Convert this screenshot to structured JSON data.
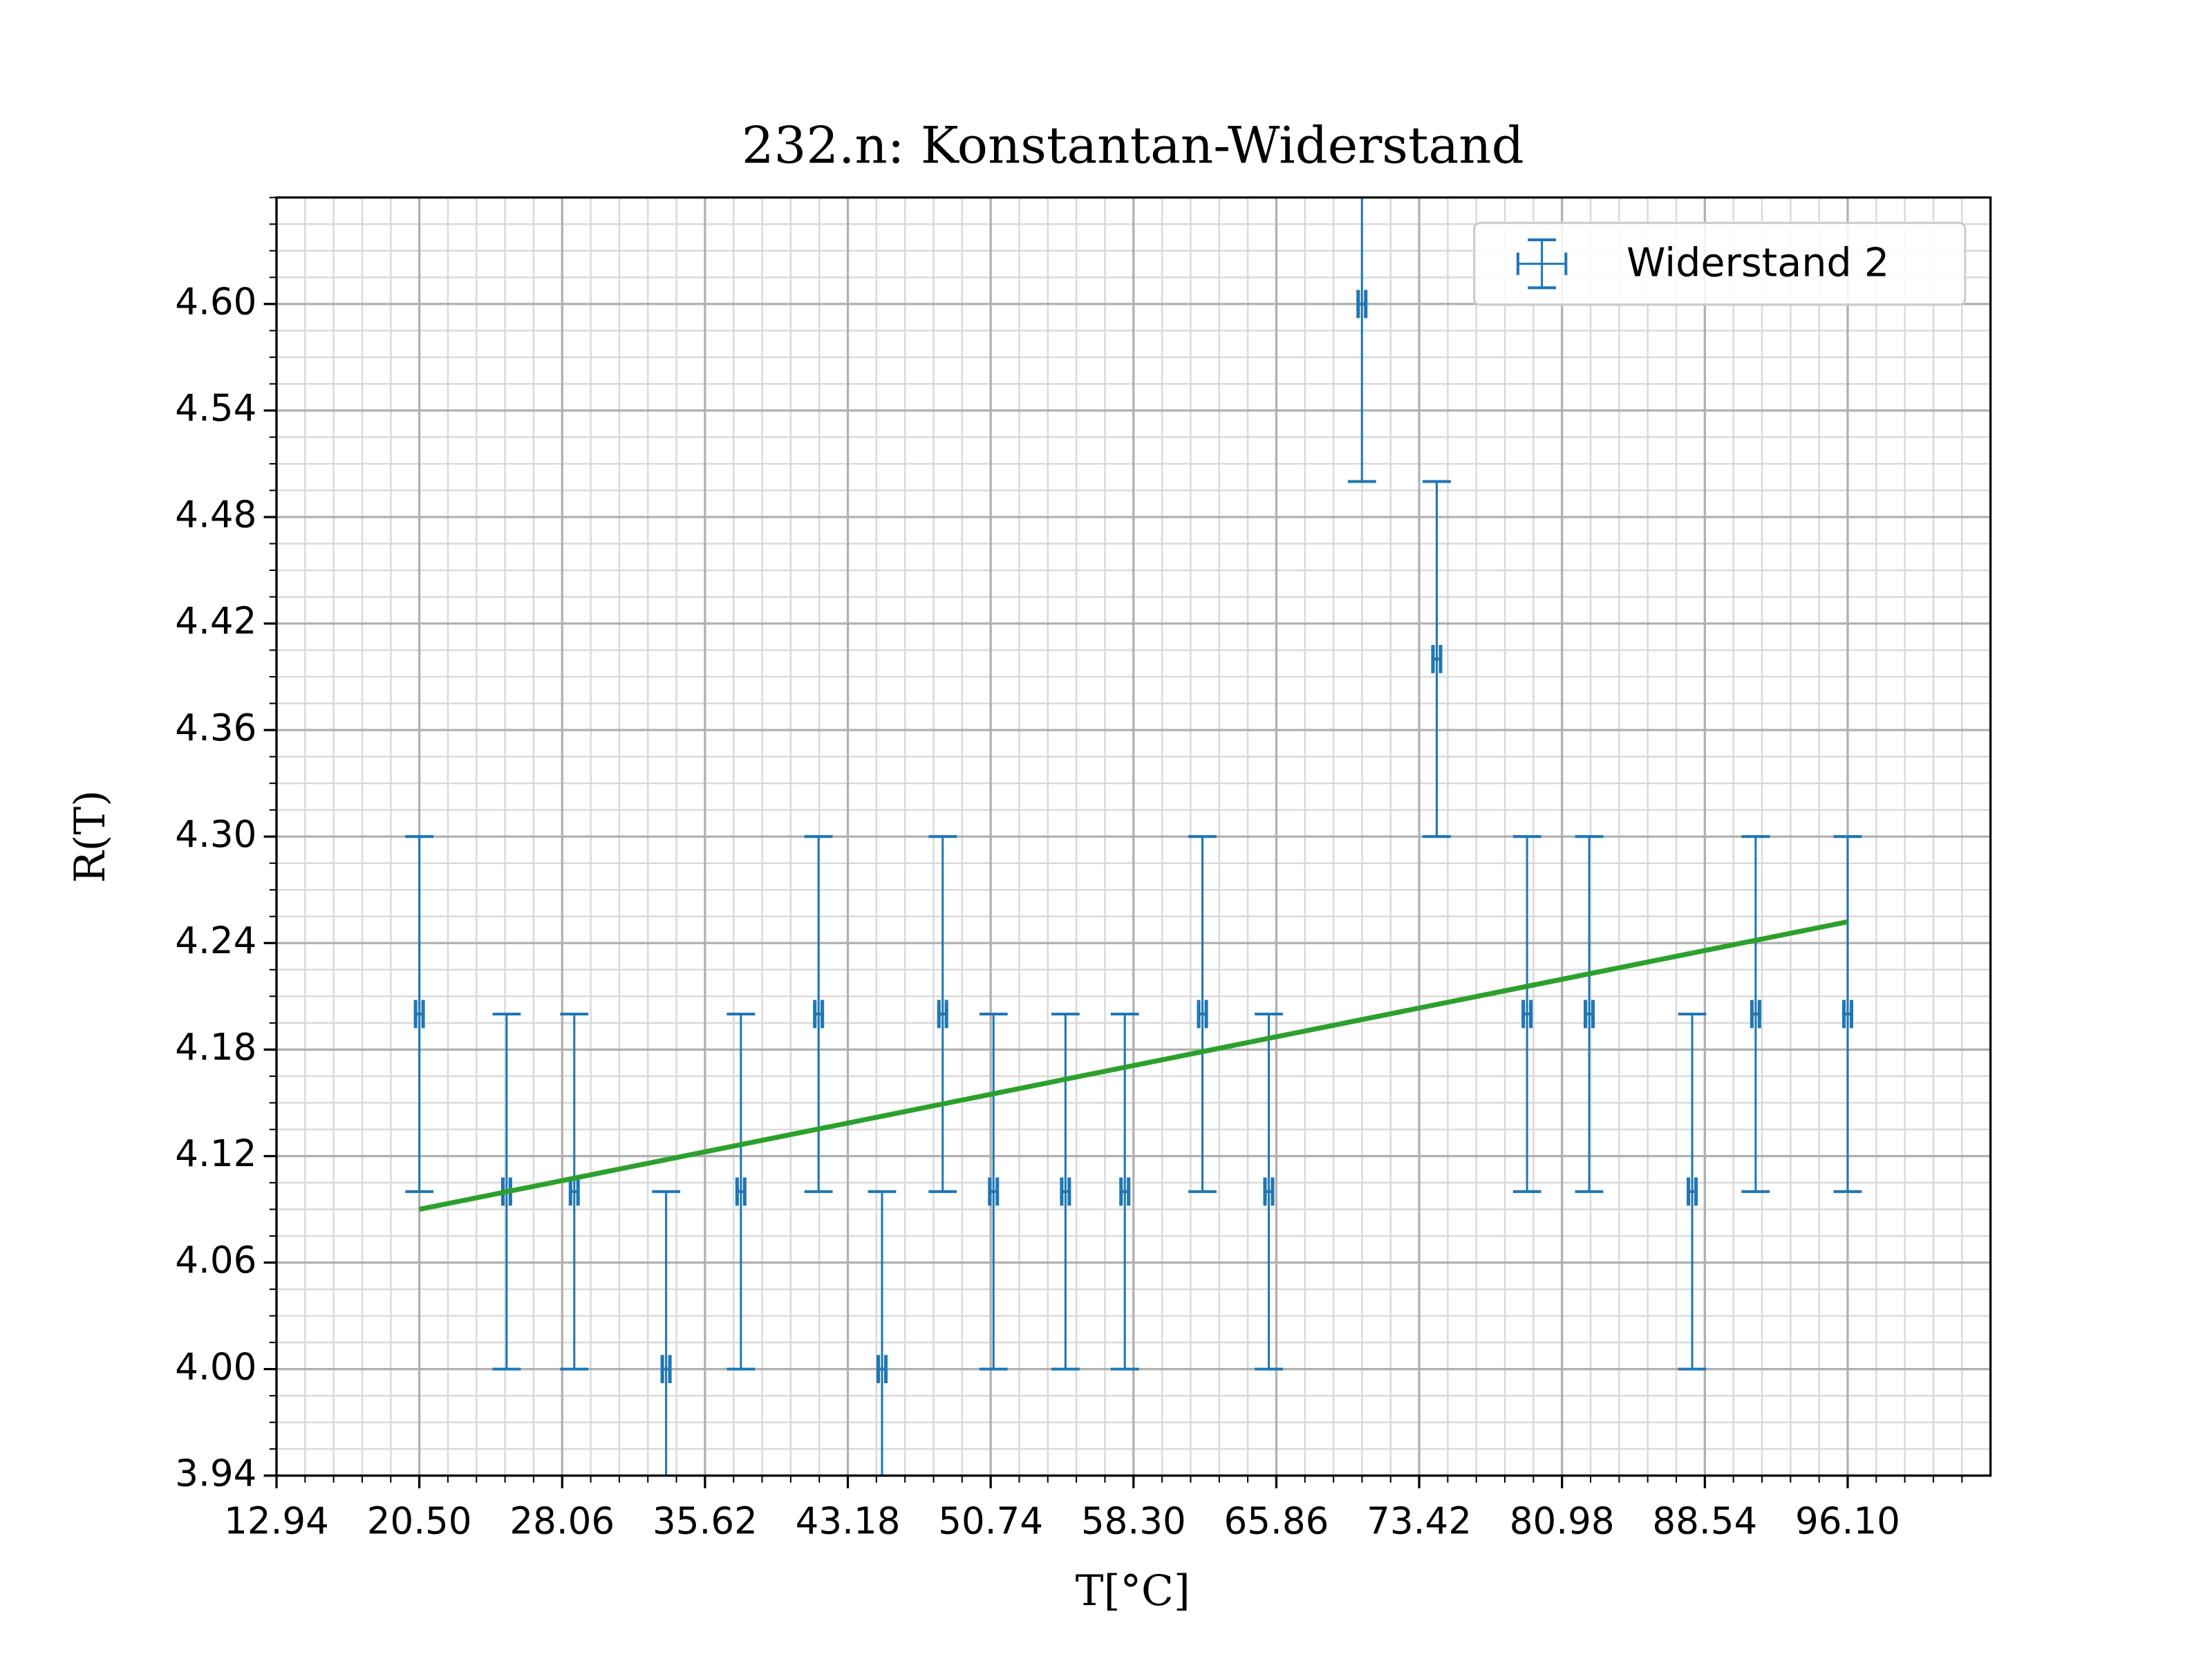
{
  "chart_data": {
    "type": "errorbar",
    "title": "232.n: Konstantan-Widerstand",
    "xlabel": "T[°C]",
    "ylabel": "R(T)",
    "series": [
      {
        "name": "Widerstand 2",
        "color": "#1f77b4",
        "x": [
          20.5,
          25.12,
          28.7,
          33.56,
          37.52,
          41.63,
          44.99,
          48.2,
          50.89,
          54.7,
          57.84,
          61.95,
          65.46,
          70.39,
          74.35,
          79.13,
          82.42,
          87.87,
          91.23,
          96.1
        ],
        "values": [
          4.2,
          4.1,
          4.1,
          4.0,
          4.1,
          4.2,
          4.0,
          4.2,
          4.1,
          4.1,
          4.1,
          4.2,
          4.1,
          4.6,
          4.4,
          4.2,
          4.2,
          4.1,
          4.2,
          4.2
        ],
        "yerr": [
          0.1,
          0.1,
          0.1,
          0.1,
          0.1,
          0.1,
          0.1,
          0.1,
          0.1,
          0.1,
          0.1,
          0.1,
          0.1,
          0.1,
          0.1,
          0.1,
          0.1,
          0.1,
          0.1,
          0.1
        ],
        "xerr": [
          0.2,
          0.2,
          0.2,
          0.2,
          0.2,
          0.2,
          0.2,
          0.2,
          0.2,
          0.2,
          0.2,
          0.2,
          0.2,
          0.2,
          0.2,
          0.2,
          0.2,
          0.2,
          0.2,
          0.2
        ]
      }
    ],
    "fit": {
      "color": "#2ca02c",
      "x": [
        20.5,
        96.1
      ],
      "values": [
        4.09,
        4.252
      ]
    },
    "xlim": [
      12.94,
      103.66
    ],
    "xticks": [
      {
        "value": 12.94,
        "label": "12.94"
      },
      {
        "value": 20.5,
        "label": "20.50"
      },
      {
        "value": 28.06,
        "label": "28.06"
      },
      {
        "value": 35.62,
        "label": "35.62"
      },
      {
        "value": 43.18,
        "label": "43.18"
      },
      {
        "value": 50.74,
        "label": "50.74"
      },
      {
        "value": 58.3,
        "label": "58.30"
      },
      {
        "value": 65.86,
        "label": "65.86"
      },
      {
        "value": 73.42,
        "label": "73.42"
      },
      {
        "value": 80.98,
        "label": "80.98"
      },
      {
        "value": 88.54,
        "label": "88.54"
      },
      {
        "value": 96.1,
        "label": "96.10"
      }
    ],
    "ylim": [
      3.94,
      4.66
    ],
    "yticks": [
      3.94,
      {
        "value": 4.0,
        "label": "4.00"
      },
      4.06,
      4.12,
      4.18,
      4.24,
      {
        "value": 4.3,
        "label": "4.30"
      },
      4.36,
      4.42,
      4.48,
      4.54,
      {
        "value": 4.6,
        "label": "4.60"
      }
    ],
    "grid": true,
    "minor_grid": {
      "x": 5,
      "y": 4
    },
    "legend": "upper right"
  }
}
